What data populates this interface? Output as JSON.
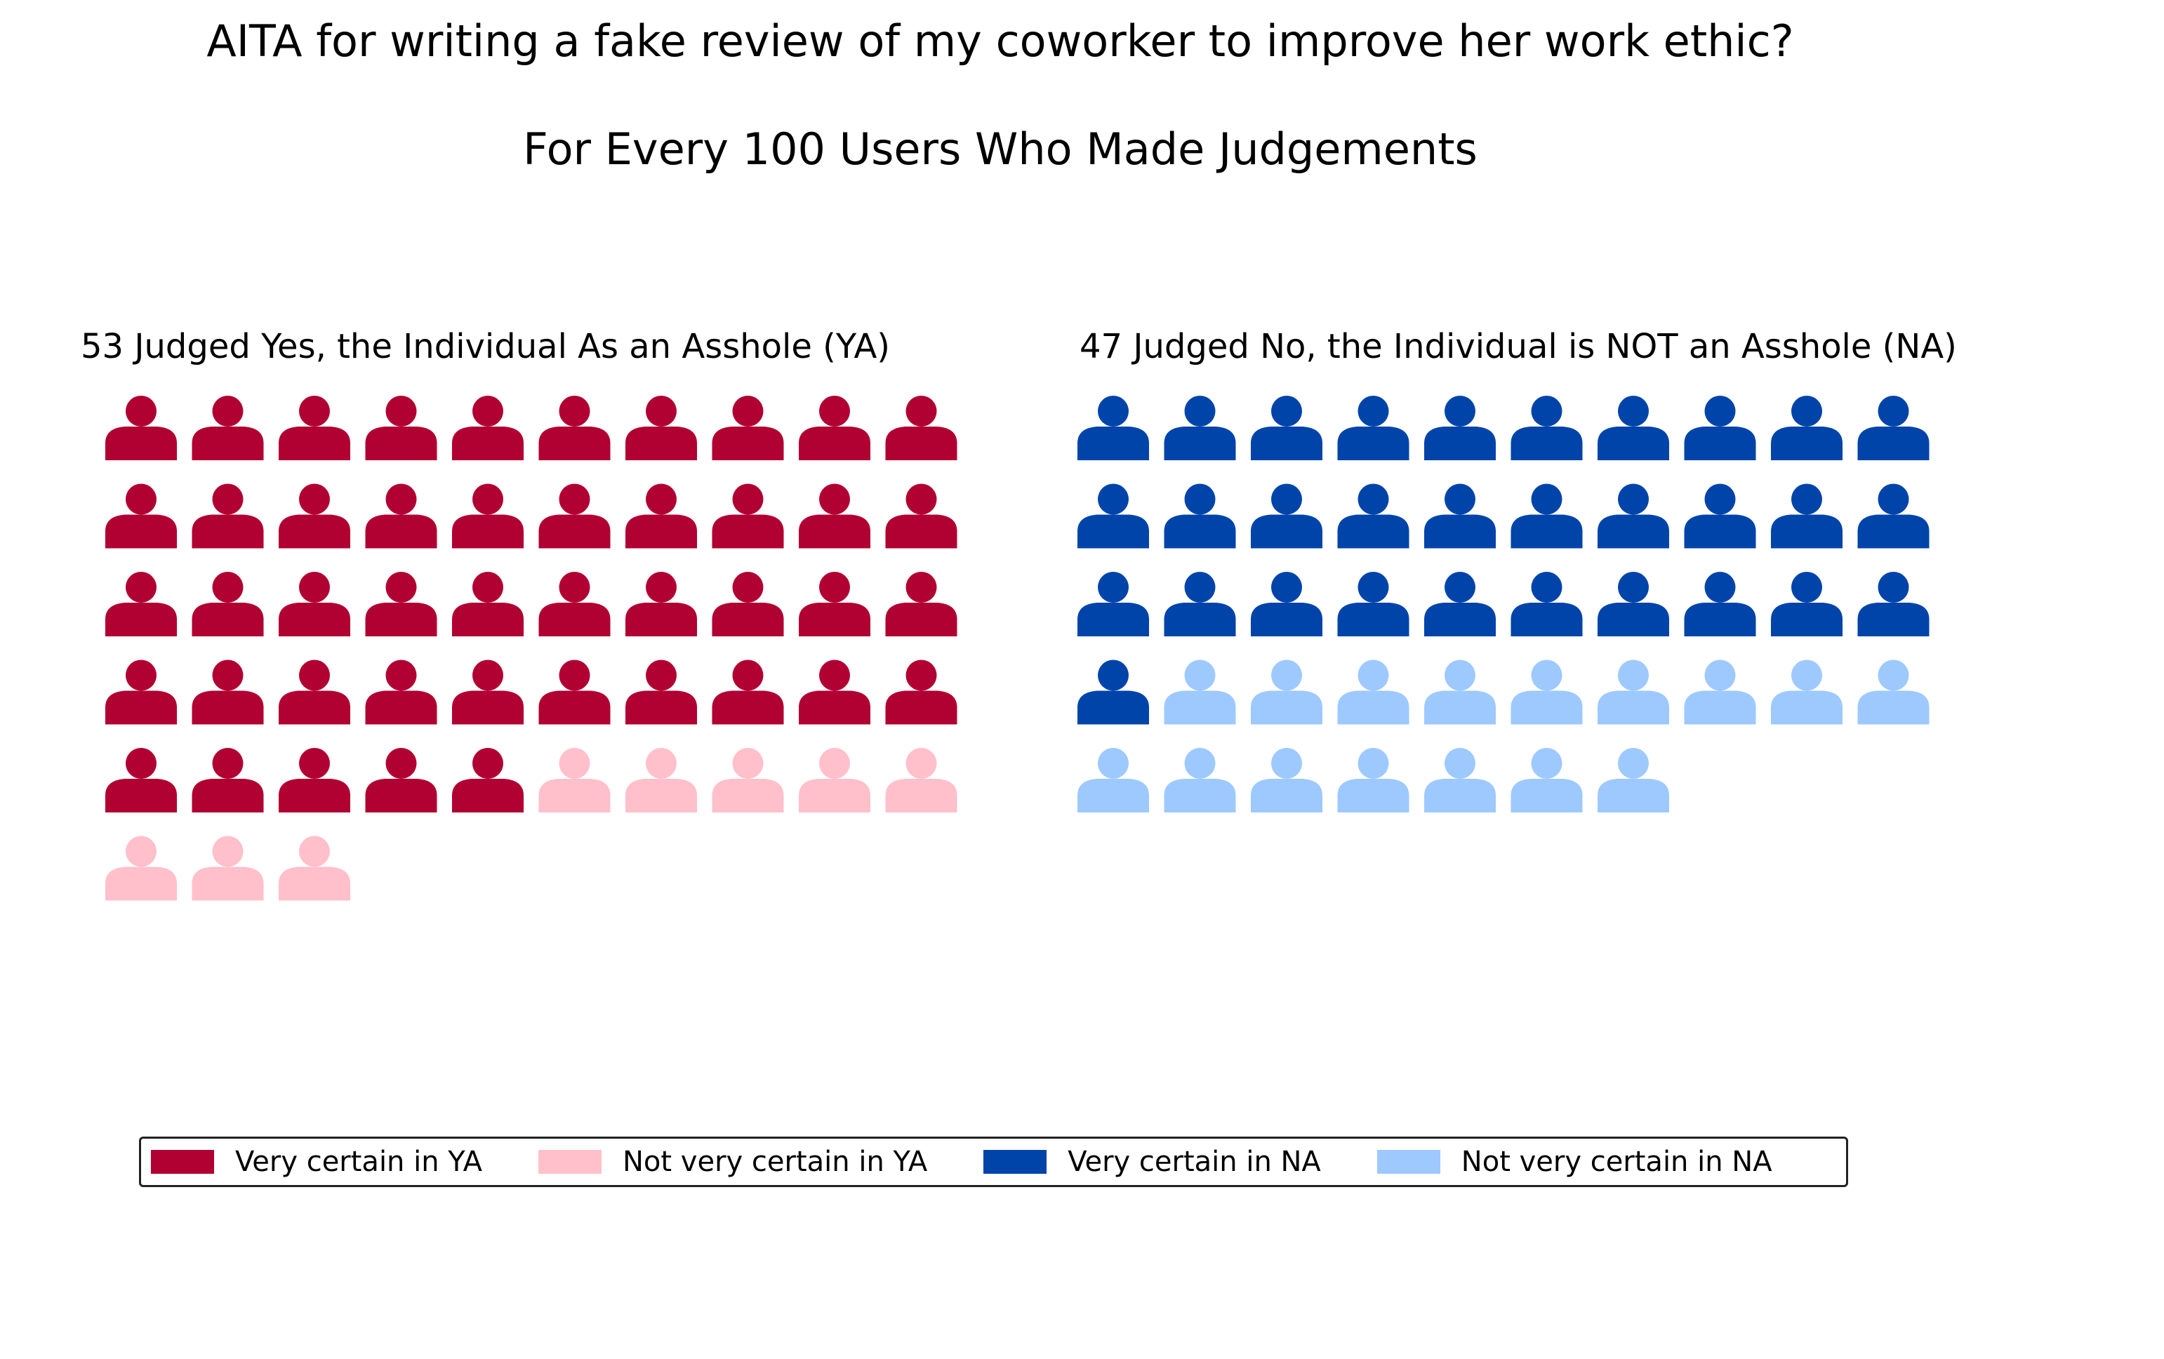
{
  "title": "AITA for writing a fake review of my coworker to improve her work ethic?",
  "subtitle": "For Every 100 Users Who Made Judgements",
  "chart_data": [
    {
      "type": "waffle",
      "title": "53 Judged Yes, the Individual As an Asshole (YA)",
      "total": 53,
      "columns": 10,
      "icon": "person-icon",
      "series": [
        {
          "name": "Very certain in YA",
          "value": 45,
          "color": "#b10032"
        },
        {
          "name": "Not very certain in YA",
          "value": 8,
          "color": "#ffc0cb"
        }
      ]
    },
    {
      "type": "waffle",
      "title": "47 Judged No, the Individual is NOT an Asshole (NA)",
      "total": 47,
      "columns": 10,
      "icon": "person-icon",
      "series": [
        {
          "name": "Very certain in NA",
          "value": 31,
          "color": "#0044aa"
        },
        {
          "name": "Not very certain in NA",
          "value": 16,
          "color": "#9ec9ff"
        }
      ]
    }
  ],
  "legend": {
    "position": "bottom-center",
    "items": [
      {
        "label": "Very certain in YA",
        "color": "#b10032"
      },
      {
        "label": "Not very certain in YA",
        "color": "#ffc0cb"
      },
      {
        "label": "Very certain in NA",
        "color": "#0044aa"
      },
      {
        "label": "Not very certain in NA",
        "color": "#9ec9ff"
      }
    ]
  }
}
